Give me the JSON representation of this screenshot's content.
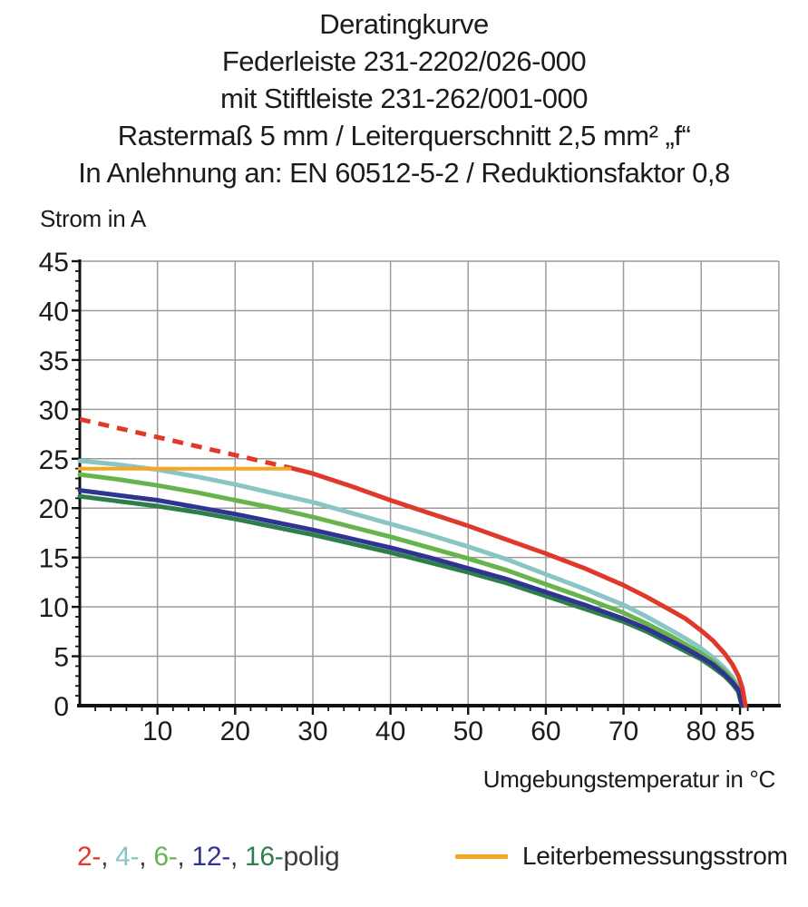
{
  "title": {
    "lines": [
      "Deratingkurve",
      "Federleiste 231-2202/026-000",
      "mit Stiftleiste 231-262/001-000",
      "Rastermaß 5 mm / Leiterquerschnitt 2,5 mm² „f“",
      "In Anlehnung an: EN 60512-5-2 / Reduktionsfaktor 0,8"
    ]
  },
  "chart_data": {
    "type": "line",
    "title": "Deratingkurve",
    "xlabel": "Umgebungstemperatur in °C",
    "ylabel": "Strom in A",
    "xlim": [
      0,
      90
    ],
    "ylim": [
      0,
      45
    ],
    "x_ticks": [
      10,
      20,
      30,
      40,
      50,
      60,
      70,
      80,
      85
    ],
    "y_ticks": [
      0,
      5,
      10,
      15,
      20,
      25,
      30,
      35,
      40,
      45
    ],
    "x_minor_step": 2,
    "y_minor_step": 1,
    "x_gridline_step": 10,
    "y_gridline_step": 5,
    "grid": true,
    "legend_position": "bottom",
    "axis_color": "#111111",
    "grid_color": "#9b9b9b",
    "series": [
      {
        "name": "4-polig",
        "color": "#8ac5c6",
        "width": 5,
        "dash": null,
        "points": [
          [
            0,
            24.8
          ],
          [
            5,
            24.4
          ],
          [
            10,
            23.9
          ],
          [
            15,
            23.2
          ],
          [
            20,
            22.4
          ],
          [
            25,
            21.5
          ],
          [
            30,
            20.6
          ],
          [
            35,
            19.5
          ],
          [
            40,
            18.4
          ],
          [
            45,
            17.3
          ],
          [
            50,
            16.1
          ],
          [
            55,
            14.8
          ],
          [
            60,
            13.3
          ],
          [
            65,
            11.8
          ],
          [
            70,
            10.2
          ],
          [
            73,
            9.0
          ],
          [
            76,
            7.7
          ],
          [
            78,
            6.8
          ],
          [
            80,
            5.8
          ],
          [
            81.5,
            4.9
          ],
          [
            83,
            3.8
          ],
          [
            84,
            2.9
          ],
          [
            84.8,
            1.9
          ],
          [
            85.2,
            1.0
          ],
          [
            85.5,
            0
          ]
        ]
      },
      {
        "name": "6-polig",
        "color": "#67b44c",
        "width": 5,
        "dash": null,
        "points": [
          [
            0,
            23.4
          ],
          [
            5,
            22.9
          ],
          [
            10,
            22.3
          ],
          [
            15,
            21.6
          ],
          [
            20,
            20.8
          ],
          [
            25,
            20.0
          ],
          [
            30,
            19.1
          ],
          [
            35,
            18.1
          ],
          [
            40,
            17.1
          ],
          [
            45,
            16.0
          ],
          [
            50,
            14.9
          ],
          [
            55,
            13.7
          ],
          [
            60,
            12.3
          ],
          [
            65,
            10.9
          ],
          [
            70,
            9.4
          ],
          [
            73,
            8.3
          ],
          [
            76,
            7.1
          ],
          [
            78,
            6.2
          ],
          [
            80,
            5.3
          ],
          [
            81.5,
            4.5
          ],
          [
            83,
            3.5
          ],
          [
            84,
            2.6
          ],
          [
            84.8,
            1.7
          ],
          [
            85.1,
            0.9
          ],
          [
            85.4,
            0
          ]
        ]
      },
      {
        "name": "16-polig",
        "color": "#2c7e4a",
        "width": 5,
        "dash": null,
        "points": [
          [
            0,
            21.2
          ],
          [
            5,
            20.7
          ],
          [
            10,
            20.2
          ],
          [
            15,
            19.6
          ],
          [
            20,
            18.9
          ],
          [
            25,
            18.1
          ],
          [
            30,
            17.3
          ],
          [
            35,
            16.4
          ],
          [
            40,
            15.5
          ],
          [
            45,
            14.5
          ],
          [
            50,
            13.5
          ],
          [
            55,
            12.4
          ],
          [
            60,
            11.1
          ],
          [
            65,
            9.8
          ],
          [
            70,
            8.5
          ],
          [
            73,
            7.5
          ],
          [
            76,
            6.3
          ],
          [
            78,
            5.5
          ],
          [
            80,
            4.7
          ],
          [
            81.5,
            3.9
          ],
          [
            83,
            3.0
          ],
          [
            84,
            2.2
          ],
          [
            84.8,
            1.4
          ],
          [
            85,
            0.7
          ],
          [
            85.25,
            0
          ]
        ]
      },
      {
        "name": "12-polig",
        "color": "#2f3391",
        "width": 5,
        "dash": null,
        "points": [
          [
            0,
            21.8
          ],
          [
            5,
            21.3
          ],
          [
            10,
            20.8
          ],
          [
            15,
            20.1
          ],
          [
            20,
            19.4
          ],
          [
            25,
            18.6
          ],
          [
            30,
            17.8
          ],
          [
            35,
            16.9
          ],
          [
            40,
            16.0
          ],
          [
            45,
            15.0
          ],
          [
            50,
            13.9
          ],
          [
            55,
            12.8
          ],
          [
            60,
            11.5
          ],
          [
            65,
            10.2
          ],
          [
            70,
            8.8
          ],
          [
            73,
            7.8
          ],
          [
            76,
            6.6
          ],
          [
            78,
            5.8
          ],
          [
            80,
            4.9
          ],
          [
            81.5,
            4.2
          ],
          [
            83,
            3.2
          ],
          [
            84,
            2.4
          ],
          [
            84.8,
            1.6
          ],
          [
            85.05,
            0.8
          ],
          [
            85.3,
            0
          ]
        ]
      },
      {
        "name": "2-polig",
        "color": "#e0392a",
        "width": 5,
        "dash": null,
        "points": [
          [
            27,
            24.1
          ],
          [
            30,
            23.5
          ],
          [
            35,
            22.2
          ],
          [
            40,
            20.8
          ],
          [
            45,
            19.5
          ],
          [
            50,
            18.2
          ],
          [
            55,
            16.8
          ],
          [
            60,
            15.4
          ],
          [
            65,
            13.9
          ],
          [
            70,
            12.2
          ],
          [
            73,
            11.0
          ],
          [
            76,
            9.7
          ],
          [
            78,
            8.8
          ],
          [
            80,
            7.6
          ],
          [
            81.5,
            6.6
          ],
          [
            83,
            5.3
          ],
          [
            84,
            4.2
          ],
          [
            84.8,
            3.0
          ],
          [
            85.3,
            1.8
          ],
          [
            85.7,
            0
          ]
        ]
      },
      {
        "name": "2-polig-gestrichelt",
        "color": "#e0392a",
        "width": 5,
        "dash": "12 9",
        "points": [
          [
            0,
            29
          ],
          [
            27,
            24.1
          ]
        ]
      },
      {
        "name": "Leiterbemessungsstrom",
        "color": "#f5a623",
        "width": 4,
        "dash": null,
        "points": [
          [
            0,
            24
          ],
          [
            27,
            24
          ]
        ]
      }
    ]
  },
  "legend": {
    "poles": [
      {
        "label": "2-",
        "color": "#e0392a"
      },
      {
        "label": "4-",
        "color": "#8ac5c6"
      },
      {
        "label": "6-",
        "color": "#67b44c"
      },
      {
        "label": "12-",
        "color": "#2f3391"
      },
      {
        "label": "16-",
        "color": "#2c7e4a"
      }
    ],
    "separator": ", ",
    "suffix": "polig",
    "rated_current_label": "Leiterbemessungsstrom",
    "rated_current_color": "#f5a623"
  }
}
